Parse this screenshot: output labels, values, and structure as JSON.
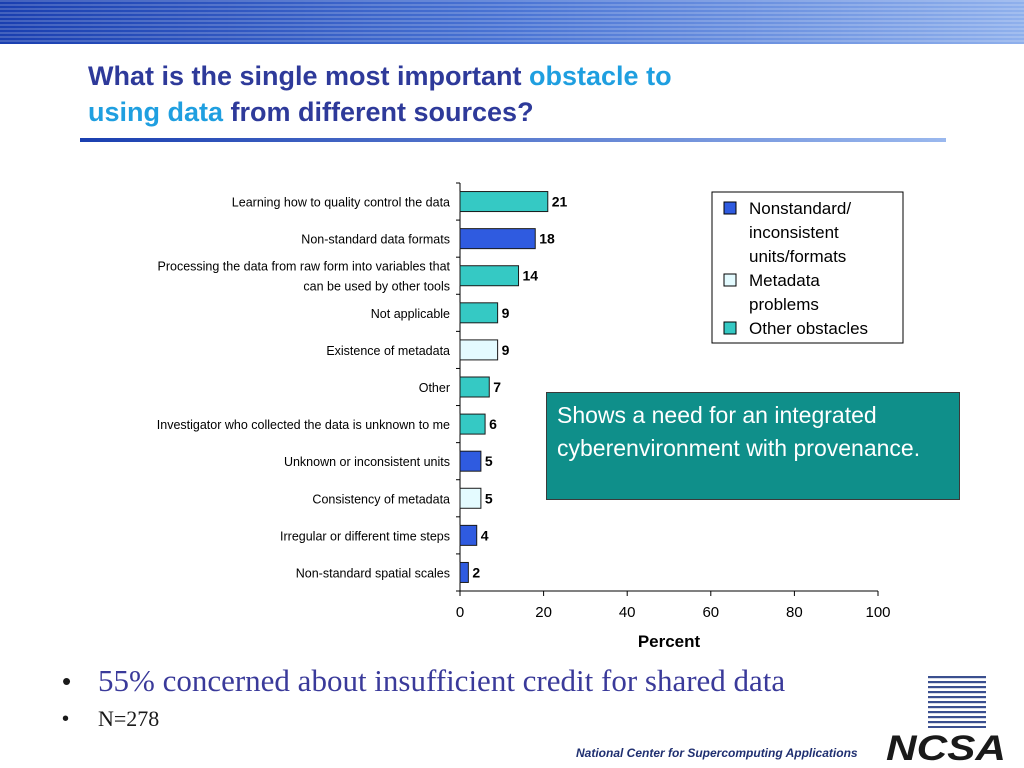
{
  "slide": {
    "title_part1": "What is the single most important ",
    "title_highlight1": "obstacle to",
    "title_highlight2": "using data",
    "title_part2": " from different sources?",
    "callout_text": "Shows a need for an integrated cyberenvironment with provenance.",
    "bullets": [
      "55% concerned about insufficient credit for shared data",
      "N=278"
    ],
    "footer_text": "National Center for Supercomputing Applications",
    "logo_text": "NCSA",
    "colors": {
      "title": "#2e3a9a",
      "title_highlight": "#1f9fe0",
      "callout_bg": "#0f8f8a",
      "band_dark": "#1a3fb0",
      "band_light": "#8fb0ec"
    }
  },
  "chart_data": {
    "type": "bar",
    "orientation": "horizontal",
    "xlabel": "Percent",
    "ylabel": "",
    "xlim": [
      0,
      100
    ],
    "xticks": [
      0,
      20,
      40,
      60,
      80,
      100
    ],
    "grid": false,
    "legend_position": "top-right",
    "categories": [
      [
        "Learning how to quality control the data"
      ],
      [
        "Non-standard data formats"
      ],
      [
        "Processing the data from raw form into variables that",
        "can be used by other tools"
      ],
      [
        "Not applicable"
      ],
      [
        "Existence of metadata"
      ],
      [
        "Other"
      ],
      [
        "Investigator who collected the data is unknown to me"
      ],
      [
        "Unknown or inconsistent units"
      ],
      [
        "Consistency of metadata"
      ],
      [
        "Irregular or different time steps"
      ],
      [
        "Non-standard spatial scales"
      ]
    ],
    "values": [
      21,
      18,
      14,
      9,
      9,
      7,
      6,
      5,
      5,
      4,
      2
    ],
    "groups": [
      "other",
      "nonstandard",
      "other",
      "other",
      "metadata",
      "other",
      "other",
      "nonstandard",
      "metadata",
      "nonstandard",
      "nonstandard"
    ],
    "series": [
      {
        "key": "nonstandard",
        "name": [
          "Nonstandard/",
          "inconsistent",
          "units/formats"
        ],
        "color": "#2f5be0"
      },
      {
        "key": "metadata",
        "name": [
          "Metadata",
          "problems"
        ],
        "color": "#e4fbff"
      },
      {
        "key": "other",
        "name": [
          "Other obstacles"
        ],
        "color": "#35c9c4"
      }
    ]
  }
}
